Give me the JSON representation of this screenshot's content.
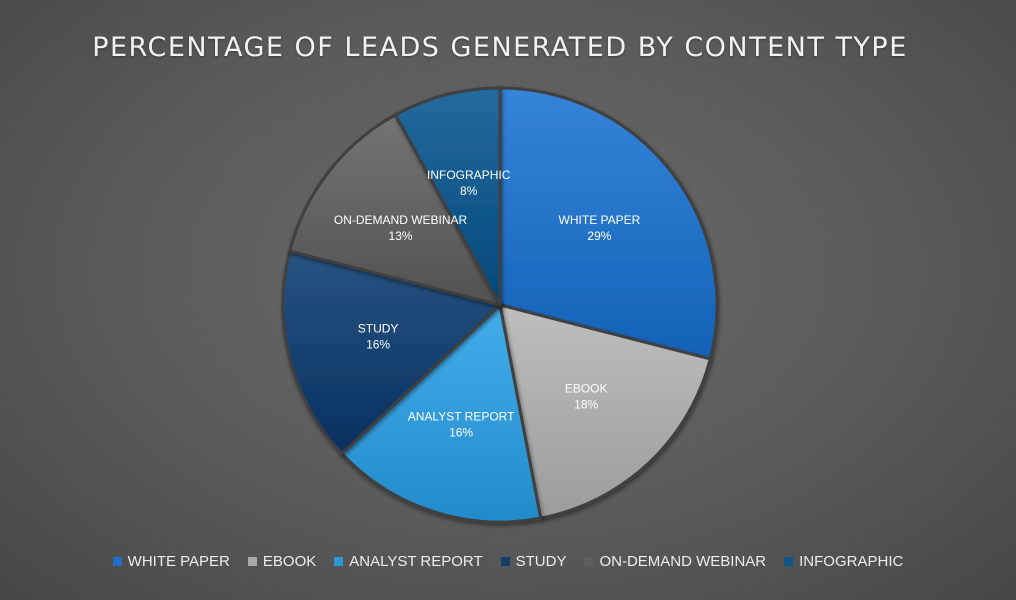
{
  "chart_data": {
    "type": "pie",
    "title": "PERCENTAGE OF LEADS GENERATED BY CONTENT TYPE",
    "legend_position": "bottom",
    "slices": [
      {
        "label": "WHITE PAPER",
        "value": 29,
        "value_label": "29%",
        "color": "#1f6ec4"
      },
      {
        "label": "EBOOK",
        "value": 18,
        "value_label": "18%",
        "color": "#a8a8a8"
      },
      {
        "label": "ANALYST REPORT",
        "value": 16,
        "value_label": "16%",
        "color": "#2e97d6"
      },
      {
        "label": "STUDY",
        "value": 16,
        "value_label": "16%",
        "color": "#123d6c"
      },
      {
        "label": "ON-DEMAND WEBINAR",
        "value": 13,
        "value_label": "13%",
        "color": "#5e5e5e"
      },
      {
        "label": "INFOGRAPHIC",
        "value": 8,
        "value_label": "8%",
        "color": "#0e5488"
      }
    ]
  }
}
